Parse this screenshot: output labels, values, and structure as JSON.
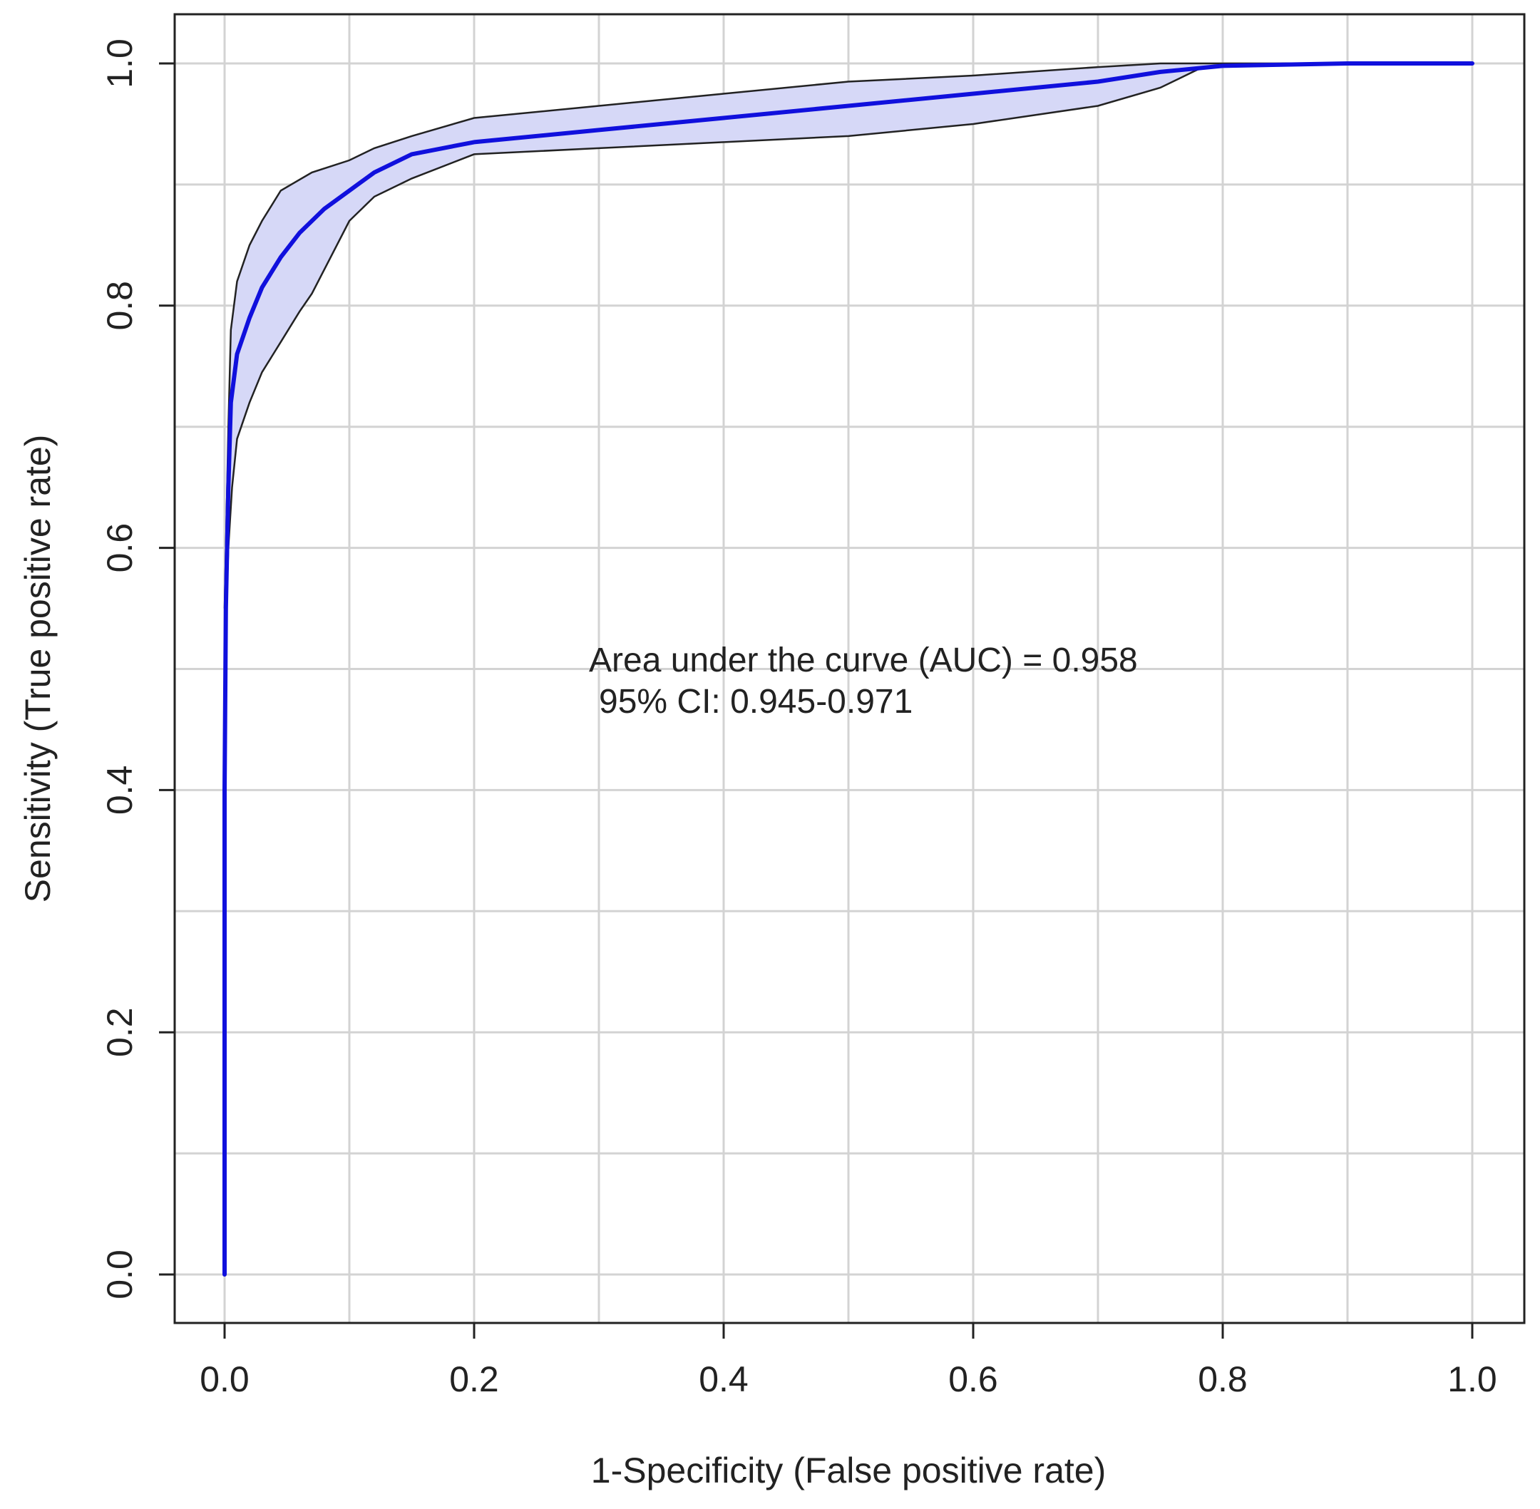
{
  "chart_data": {
    "type": "line",
    "title": "",
    "xlabel": "1-Specificity (False positive rate)",
    "ylabel": "Sensitivity (True positive rate)",
    "xlim": [
      0.0,
      1.0
    ],
    "ylim": [
      0.0,
      1.0
    ],
    "x_ticks": [
      "0.0",
      "0.2",
      "0.4",
      "0.6",
      "0.8",
      "1.0"
    ],
    "y_ticks": [
      "0.0",
      "0.2",
      "0.4",
      "0.6",
      "0.8",
      "1.0"
    ],
    "grid": true,
    "annotation_lines": [
      "Area under the curve (AUC) = 0.958",
      "95% CI: 0.945-0.971"
    ],
    "colors": {
      "curve": "#1010dd",
      "band_fill": "#d6d8f7",
      "band_edge": "#222222",
      "grid": "#d3d3d3"
    },
    "series": [
      {
        "values": [
          [
            0.0,
            0.0
          ],
          [
            0.0,
            0.4
          ],
          [
            0.001,
            0.55
          ],
          [
            0.003,
            0.65
          ],
          [
            0.005,
            0.72
          ],
          [
            0.01,
            0.76
          ],
          [
            0.02,
            0.79
          ],
          [
            0.03,
            0.815
          ],
          [
            0.045,
            0.84
          ],
          [
            0.06,
            0.86
          ],
          [
            0.08,
            0.88
          ],
          [
            0.1,
            0.895
          ],
          [
            0.12,
            0.91
          ],
          [
            0.15,
            0.925
          ],
          [
            0.2,
            0.935
          ],
          [
            0.3,
            0.945
          ],
          [
            0.4,
            0.955
          ],
          [
            0.5,
            0.965
          ],
          [
            0.6,
            0.975
          ],
          [
            0.7,
            0.985
          ],
          [
            0.75,
            0.993
          ],
          [
            0.8,
            0.998
          ],
          [
            0.9,
            1.0
          ],
          [
            1.0,
            1.0
          ]
        ]
      }
    ],
    "ci_band": {
      "upper": [
        [
          0.0,
          0.55
        ],
        [
          0.003,
          0.7
        ],
        [
          0.005,
          0.78
        ],
        [
          0.01,
          0.82
        ],
        [
          0.02,
          0.85
        ],
        [
          0.03,
          0.87
        ],
        [
          0.045,
          0.895
        ],
        [
          0.07,
          0.91
        ],
        [
          0.1,
          0.92
        ],
        [
          0.12,
          0.93
        ],
        [
          0.15,
          0.94
        ],
        [
          0.2,
          0.955
        ],
        [
          0.3,
          0.965
        ],
        [
          0.4,
          0.975
        ],
        [
          0.5,
          0.985
        ],
        [
          0.6,
          0.99
        ],
        [
          0.7,
          0.997
        ],
        [
          0.75,
          1.0
        ],
        [
          1.0,
          1.0
        ]
      ],
      "lower": [
        [
          0.0,
          0.5
        ],
        [
          0.003,
          0.6
        ],
        [
          0.006,
          0.65
        ],
        [
          0.01,
          0.69
        ],
        [
          0.02,
          0.72
        ],
        [
          0.03,
          0.745
        ],
        [
          0.045,
          0.77
        ],
        [
          0.06,
          0.795
        ],
        [
          0.07,
          0.81
        ],
        [
          0.085,
          0.84
        ],
        [
          0.1,
          0.87
        ],
        [
          0.12,
          0.89
        ],
        [
          0.15,
          0.905
        ],
        [
          0.2,
          0.925
        ],
        [
          0.3,
          0.93
        ],
        [
          0.4,
          0.935
        ],
        [
          0.5,
          0.94
        ],
        [
          0.6,
          0.95
        ],
        [
          0.7,
          0.965
        ],
        [
          0.75,
          0.98
        ],
        [
          0.78,
          0.995
        ],
        [
          0.8,
          0.998
        ],
        [
          0.85,
          1.0
        ],
        [
          1.0,
          1.0
        ]
      ]
    }
  }
}
